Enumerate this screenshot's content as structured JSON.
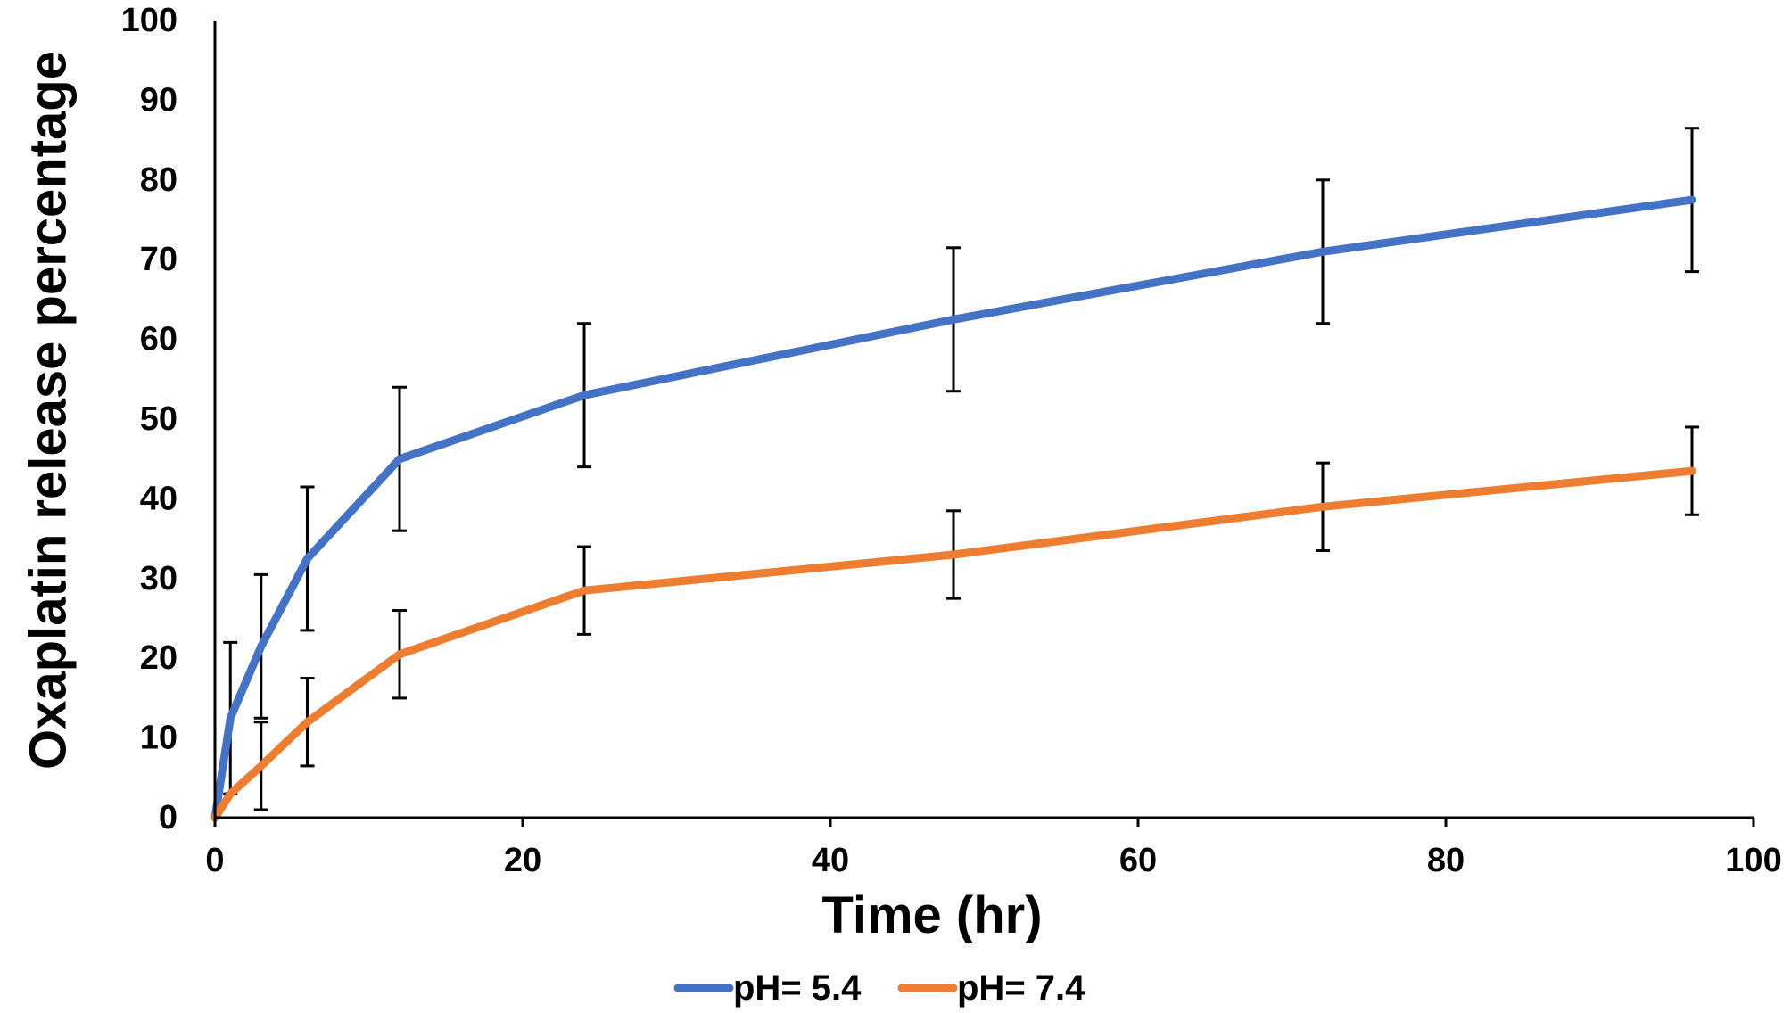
{
  "chart_data": {
    "type": "line",
    "title": "",
    "xlabel": "Time (hr)",
    "ylabel": "Oxaplatin release percentage",
    "xlim": [
      0,
      100
    ],
    "ylim": [
      0,
      100
    ],
    "x_ticks": [
      0,
      20,
      40,
      60,
      80,
      100
    ],
    "y_ticks": [
      0,
      10,
      20,
      30,
      40,
      50,
      60,
      70,
      80,
      90,
      100
    ],
    "x_tick_labels": [
      "0",
      "20",
      "40",
      "60",
      "80",
      "100"
    ],
    "y_tick_labels": [
      "0",
      "10",
      "20",
      "30",
      "40",
      "50",
      "60",
      "70",
      "80",
      "90",
      "100"
    ],
    "grid": false,
    "legend_position": "bottom",
    "x": [
      0,
      1,
      3,
      6,
      12,
      24,
      48,
      72,
      96
    ],
    "series": [
      {
        "name": "pH= 5.4",
        "color": "#4472C4",
        "values": [
          0,
          12.5,
          21.5,
          32.5,
          45,
          53,
          62.5,
          71,
          77.5
        ],
        "errors": [
          0,
          9.5,
          9,
          9,
          9,
          9,
          9,
          9,
          9
        ]
      },
      {
        "name": "pH= 7.4",
        "color": "#ED7D31",
        "values": [
          0,
          3,
          6.5,
          12,
          20.5,
          28.5,
          33,
          39,
          43.5
        ],
        "errors": [
          0,
          0,
          5.5,
          5.5,
          5.5,
          5.5,
          5.5,
          5.5,
          5.5
        ]
      }
    ]
  }
}
